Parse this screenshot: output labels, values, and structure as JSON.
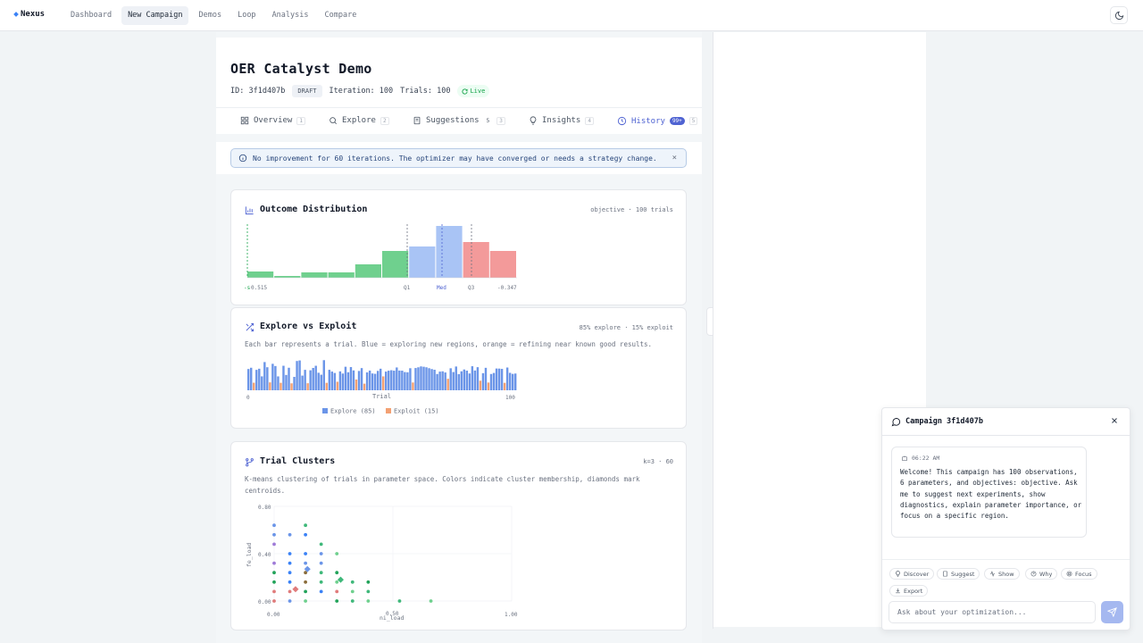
{
  "app": {
    "logo": "Nexus"
  },
  "nav": {
    "items": [
      {
        "label": "Dashboard"
      },
      {
        "label": "New Campaign"
      },
      {
        "label": "Demos"
      },
      {
        "label": "Loop"
      },
      {
        "label": "Analysis"
      },
      {
        "label": "Compare"
      }
    ],
    "active_index": 1
  },
  "campaign": {
    "title": "OER Catalyst Demo",
    "id_text": "ID: 3f1d407b",
    "status": "DRAFT",
    "iteration_text": "Iteration: 100",
    "trials_text": "Trials: 100",
    "live_label": "Live"
  },
  "tabs": [
    {
      "label": "Overview",
      "key": "1",
      "icon": "grid-icon"
    },
    {
      "label": "Explore",
      "key": "2",
      "icon": "search-icon"
    },
    {
      "label": "Suggestions",
      "count": "5",
      "key": "3",
      "icon": "clipboard-icon"
    },
    {
      "label": "Insights",
      "key": "4",
      "icon": "lightbulb-icon"
    },
    {
      "label": "History",
      "count": "99+",
      "key": "5",
      "icon": "clock-icon"
    }
  ],
  "alert": {
    "text": "No improvement for 60 iterations. The optimizer may have converged or needs a strategy change.",
    "close": "×"
  },
  "outcome": {
    "title": "Outcome Distribution",
    "meta": "objective · 100 trials",
    "tick_left_a": "-s",
    "tick_left_b": "0.515",
    "q1": "Q1",
    "med": "Med",
    "q3": "Q3",
    "tick_right": "-0.347"
  },
  "explore": {
    "title": "Explore vs Exploit",
    "meta": "85% explore · 15% exploit",
    "desc": "Each bar represents a trial. Blue = exploring new regions, orange = refining near known good results.",
    "x_start": "0",
    "x_label": "Trial",
    "x_end": "100",
    "legend_explore": "Explore (85)",
    "legend_exploit": "Exploit (15)"
  },
  "clusters": {
    "title": "Trial Clusters",
    "meta": "k=3 · 60",
    "desc": "K-means clustering of trials in parameter space. Colors indicate cluster membership, diamonds mark centroids.",
    "y_label": "fe_load",
    "x_label": "ni_load",
    "y_ticks": [
      "0.80",
      "0.40",
      "0.00"
    ],
    "x_ticks": [
      "0.00",
      "0.50",
      "1.00"
    ]
  },
  "chat": {
    "title": "Campaign 3f1d407b",
    "time": "06:22 AM",
    "message": "Welcome! This campaign has 100 observations, 6 parameters, and objectives: objective. Ask me to suggest next experiments, show diagnostics, explain parameter importance, or focus on a specific region.",
    "actions": [
      "Discover",
      "Suggest",
      "Show",
      "Why",
      "Focus",
      "Export"
    ],
    "placeholder": "Ask about your optimization..."
  },
  "colors": {
    "accent": "#4f63d2",
    "explore": "#6b95e8",
    "exploit": "#f3a173",
    "hist_green": "#6fd08e",
    "hist_blue": "#a9c4f5",
    "hist_red": "#f39a9a"
  }
}
